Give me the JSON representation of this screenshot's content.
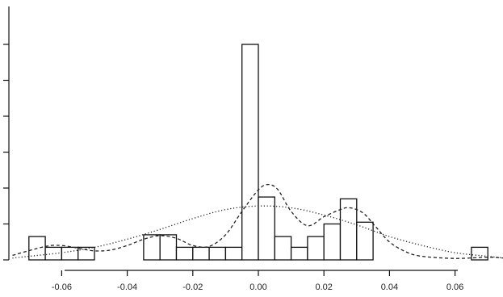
{
  "chart_data": {
    "type": "bar",
    "title": "",
    "xlabel": "",
    "ylabel": "",
    "xlim": [
      -0.07,
      0.075
    ],
    "ylim": [
      0,
      12
    ],
    "bin_width": 0.005,
    "x_ticks": [
      -0.06,
      -0.04,
      -0.02,
      0.0,
      0.02,
      0.04,
      0.06
    ],
    "x_tick_labels": [
      "-0.06",
      "-0.04",
      "-0.02",
      "0.00",
      "0.02",
      "0.04",
      "0.06"
    ],
    "y_ticks": [
      0,
      2,
      4,
      6,
      8,
      10,
      12
    ],
    "y_tick_labels": [
      "",
      "",
      "",
      "",
      "",
      "",
      ""
    ],
    "histogram": {
      "bin_starts": [
        -0.07,
        -0.065,
        -0.06,
        -0.055,
        -0.035,
        -0.03,
        -0.025,
        -0.02,
        -0.015,
        -0.01,
        -0.005,
        0.0,
        0.005,
        0.01,
        0.015,
        0.02,
        0.025,
        0.03,
        0.065
      ],
      "counts": [
        1.3,
        0.7,
        0.7,
        0.7,
        1.4,
        1.4,
        0.7,
        0.7,
        0.7,
        0.7,
        12,
        3.5,
        1.3,
        0.7,
        1.3,
        2.0,
        3.4,
        2.1,
        0.7
      ]
    },
    "series": [
      {
        "style": "dashed",
        "x": [
          -0.075,
          -0.065,
          -0.06,
          -0.055,
          -0.05,
          -0.045,
          -0.04,
          -0.035,
          -0.03,
          -0.025,
          -0.02,
          -0.015,
          -0.01,
          -0.005,
          0.0,
          0.003,
          0.006,
          0.01,
          0.015,
          0.02,
          0.025,
          0.028,
          0.032,
          0.036,
          0.04,
          0.045,
          0.05,
          0.06,
          0.07,
          0.075
        ],
        "values": [
          0.25,
          0.75,
          0.8,
          0.65,
          0.5,
          0.55,
          0.8,
          1.15,
          1.35,
          1.2,
          0.8,
          0.75,
          1.4,
          2.7,
          3.9,
          4.2,
          3.9,
          2.7,
          1.9,
          2.4,
          2.8,
          2.9,
          2.6,
          1.8,
          1.0,
          0.45,
          0.2,
          0.08,
          0.15,
          0.1
        ]
      },
      {
        "style": "dotted",
        "x": [
          -0.075,
          -0.07,
          -0.06,
          -0.05,
          -0.04,
          -0.03,
          -0.02,
          -0.01,
          0.0,
          0.01,
          0.02,
          0.03,
          0.04,
          0.05,
          0.06,
          0.07,
          0.075
        ],
        "values": [
          0.1,
          0.2,
          0.4,
          0.7,
          1.15,
          1.7,
          2.3,
          2.8,
          3.0,
          2.9,
          2.5,
          1.95,
          1.3,
          0.8,
          0.4,
          0.2,
          0.1
        ]
      }
    ],
    "grid": false,
    "legend": "none"
  }
}
